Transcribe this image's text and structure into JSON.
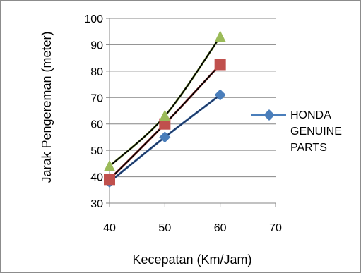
{
  "chart_data": {
    "type": "line",
    "title": "",
    "xlabel": "Kecepatan (Km/Jam)",
    "ylabel": "Jarak Pengereman (meter)",
    "xlim": [
      40,
      70
    ],
    "ylim": [
      30,
      100
    ],
    "x_ticks": [
      "40",
      "50",
      "60",
      "70"
    ],
    "y_ticks": [
      "30",
      "40",
      "50",
      "60",
      "70",
      "80",
      "90",
      "100"
    ],
    "grid": "horizontal",
    "legend_position": "right",
    "x": [
      40,
      50,
      60
    ],
    "series": [
      {
        "name": "HONDA GENUINE PARTS",
        "marker": "diamond",
        "color": "#4a7ebb",
        "trendline_color": "#1f3864",
        "values": [
          38,
          55,
          71
        ],
        "in_legend": true
      },
      {
        "marker": "square",
        "color": "#c0504d",
        "trendline_color": "#000000",
        "values": [
          39,
          60,
          82.5
        ],
        "in_legend": false
      },
      {
        "marker": "triangle",
        "color": "#9bbb59",
        "trendline_color": "#000000",
        "values": [
          44,
          63,
          93
        ],
        "in_legend": false
      }
    ]
  }
}
